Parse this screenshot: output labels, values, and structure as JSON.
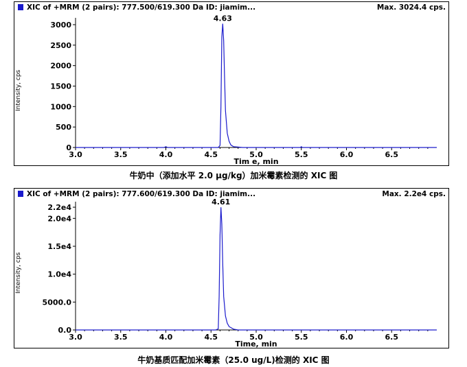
{
  "chart_data": [
    {
      "type": "line",
      "header": "XIC of +MRM (2 pairs): 777.500/619.300 Da ID: jiamim...",
      "max_label": "Max. 3024.4 cps.",
      "xlabel": "Tim e, min",
      "ylabel": "Intensity, cps",
      "xlim": [
        3.0,
        7.0
      ],
      "ylim": [
        0,
        3100
      ],
      "xticks": [
        "3.0",
        "3.5",
        "4.0",
        "4.5",
        "5.0",
        "5.5",
        "6.0",
        "6.5"
      ],
      "yticks": [
        "0",
        "500",
        "1000",
        "1500",
        "2000",
        "2500",
        "3000"
      ],
      "peak_label": "4.63",
      "peak_x": 4.63,
      "caption": "牛奶中（添加水平 2.0 μg/kg）加米霉素检测的 XIC 图",
      "color": "#1a1acc",
      "series": [
        {
          "x": [
            3.0,
            3.98,
            4.0,
            4.02,
            4.4,
            4.58,
            4.6,
            4.61,
            4.62,
            4.63,
            4.64,
            4.65,
            4.66,
            4.68,
            4.7,
            4.72,
            4.75,
            4.8,
            4.85,
            5.49,
            5.5,
            5.51,
            7.0
          ],
          "y": [
            0,
            0,
            20,
            0,
            0,
            0,
            50,
            1000,
            2700,
            3024,
            2600,
            1700,
            900,
            350,
            150,
            60,
            20,
            10,
            0,
            0,
            20,
            0,
            0
          ]
        }
      ]
    },
    {
      "type": "line",
      "header": "XIC of +MRM (2 pairs): 777.600/619.300 Da ID: jiamim...",
      "max_label": "Max. 2.2e4 cps.",
      "xlabel": "Time, min",
      "ylabel": "Intensity, cps",
      "xlim": [
        3.0,
        7.0
      ],
      "ylim": [
        0,
        22500
      ],
      "xticks": [
        "3.0",
        "3.5",
        "4.0",
        "4.5",
        "5.0",
        "5.5",
        "6.0",
        "6.5"
      ],
      "yticks": [
        "0.0",
        "5000.0",
        "1.0e4",
        "1.5e4",
        "2.0e4",
        "2.2e4"
      ],
      "peak_label": "4.61",
      "peak_x": 4.61,
      "caption": "牛奶基质匹配加米霉素（25.0 ug/L)检测的 XIC 图",
      "color": "#1a1acc",
      "series": [
        {
          "x": [
            3.0,
            4.55,
            4.58,
            4.59,
            4.6,
            4.61,
            4.62,
            4.63,
            4.64,
            4.66,
            4.68,
            4.7,
            4.75,
            4.8,
            7.0
          ],
          "y": [
            0,
            0,
            200,
            6000,
            17000,
            22000,
            19000,
            12000,
            6000,
            2500,
            1200,
            600,
            150,
            0,
            0
          ]
        }
      ]
    }
  ]
}
